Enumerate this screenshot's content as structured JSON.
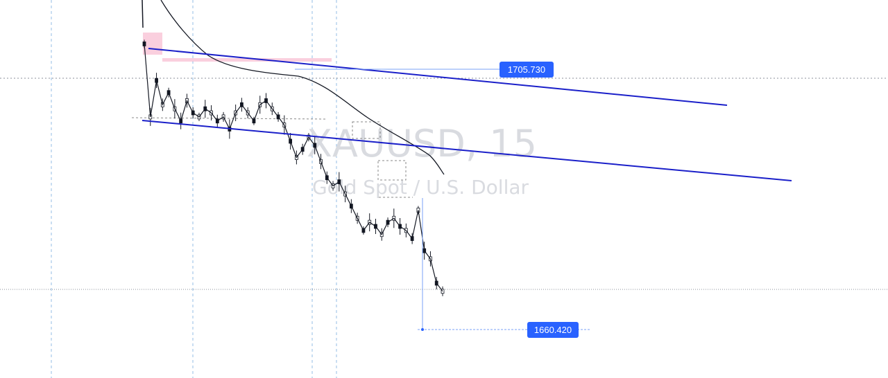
{
  "symbol_watermark": {
    "title": "XAUUSD, 15",
    "subtitle": "Gold Spot / U.S. Dollar"
  },
  "price_labels": {
    "upper": "1705.730",
    "lower": "1660.420"
  },
  "colors": {
    "channel_line": "#1a1fc9",
    "price_tag": "#2962ff",
    "candle": "#131722",
    "moving_average": "#131722",
    "grid_dashed": "#6fa8dc",
    "highlight_box": "#f8bbd0"
  },
  "chart_data": {
    "type": "line",
    "title": "",
    "instrument": "XAUUSD",
    "timeframe": "15",
    "xlabel": "",
    "ylabel": "",
    "ylim": [
      1655,
      1725
    ],
    "grid": "dashed vertical and horizontal guide lines",
    "legend": "none",
    "series": [
      {
        "values": [
          1721,
          1703,
          1712,
          1706,
          1709,
          1705,
          1702,
          1707,
          1704,
          1703,
          1705,
          1704,
          1702,
          1703,
          1700,
          1704,
          1706,
          1704,
          1702,
          1706,
          1707,
          1705,
          1703,
          1701,
          1697,
          1693,
          1695,
          1698,
          1696,
          1692,
          1688,
          1686,
          1687,
          1684,
          1681,
          1678,
          1675,
          1677,
          1676,
          1674,
          1677,
          1678,
          1676,
          1675,
          1673,
          1680,
          1670,
          1668,
          1662,
          1660
        ]
      }
    ],
    "annotations": [
      {
        "type": "price_label",
        "value": 1705.73
      },
      {
        "type": "price_label",
        "value": 1660.42
      },
      {
        "type": "trend_channel_upper",
        "from": 1718,
        "to": 1695
      },
      {
        "type": "trend_channel_lower",
        "from": 1701,
        "to": 1680
      }
    ]
  }
}
